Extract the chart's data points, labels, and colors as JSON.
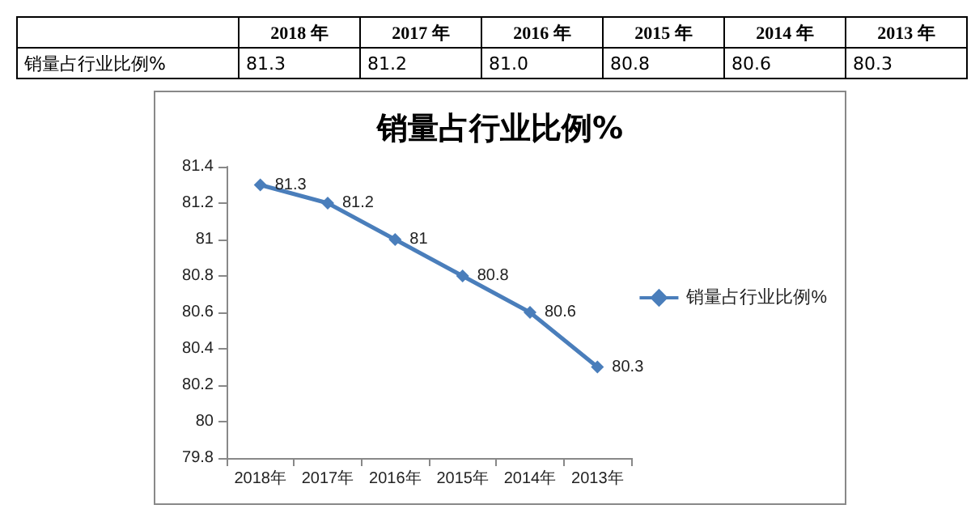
{
  "chart_data": [
    {
      "type": "heatmap",
      "categories": [
        "2018 年",
        "2017 年",
        "2016 年",
        "2015 年",
        "2014 年",
        "2013 年"
      ],
      "y_categories": [
        "销量占行业比例%"
      ],
      "cells": [
        [
          81.3,
          81.2,
          81.0,
          80.8,
          80.6,
          80.3
        ]
      ],
      "cell_labels": [
        [
          "81.3",
          "81.2",
          "81.0",
          "80.8",
          "80.6",
          "80.3"
        ]
      ],
      "data_labels": true
    },
    {
      "type": "line",
      "title": "销量占行业比例%",
      "categories": [
        "2018年",
        "2017年",
        "2016年",
        "2015年",
        "2014年",
        "2013年"
      ],
      "series": [
        {
          "name": "销量占行业比例%",
          "color": "#4a7ebb",
          "values": [
            81.3,
            81.2,
            81,
            80.8,
            80.6,
            80.3
          ]
        }
      ],
      "ylim": [
        79.8,
        81.4
      ],
      "yticks": [
        79.8,
        80,
        80.2,
        80.4,
        80.6,
        80.8,
        81,
        81.2,
        81.4
      ],
      "data_labels": true,
      "marker": "diamond",
      "legend": "right",
      "grid": false
    }
  ]
}
